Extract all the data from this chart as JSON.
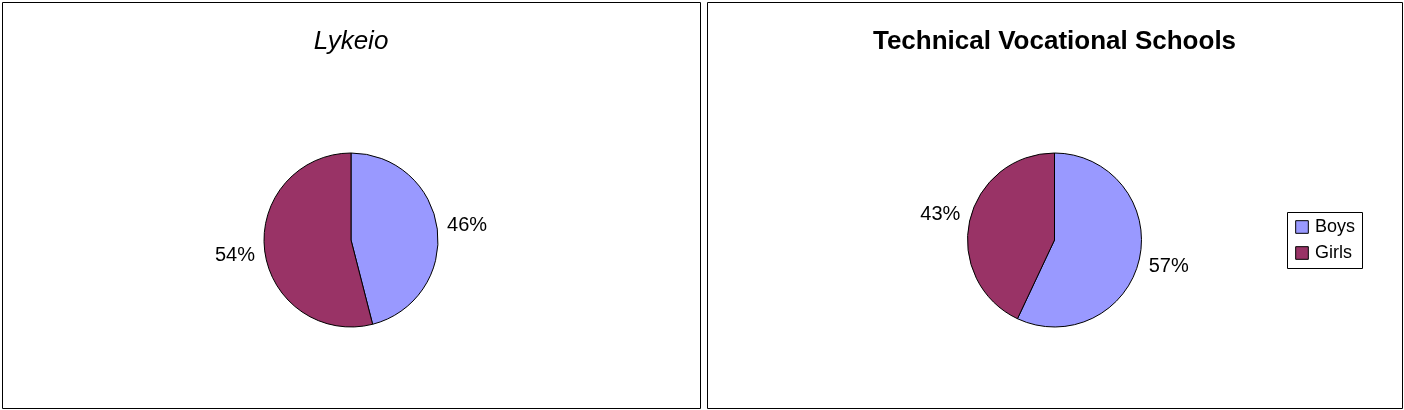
{
  "chart_data": [
    {
      "type": "pie",
      "title": "Lykeio",
      "categories": [
        null,
        null
      ],
      "values": [
        46,
        54
      ],
      "colors": [
        "#9999ff",
        "#993366"
      ],
      "value_labels": [
        "46%",
        "54%"
      ],
      "legend": false
    },
    {
      "type": "pie",
      "title": "Technical Vocational Schools",
      "categories": [
        "Boys",
        "Girls"
      ],
      "values": [
        57,
        43
      ],
      "colors": [
        "#9999ff",
        "#993366"
      ],
      "value_labels": [
        "57%",
        "43%"
      ],
      "legend": "right"
    }
  ]
}
